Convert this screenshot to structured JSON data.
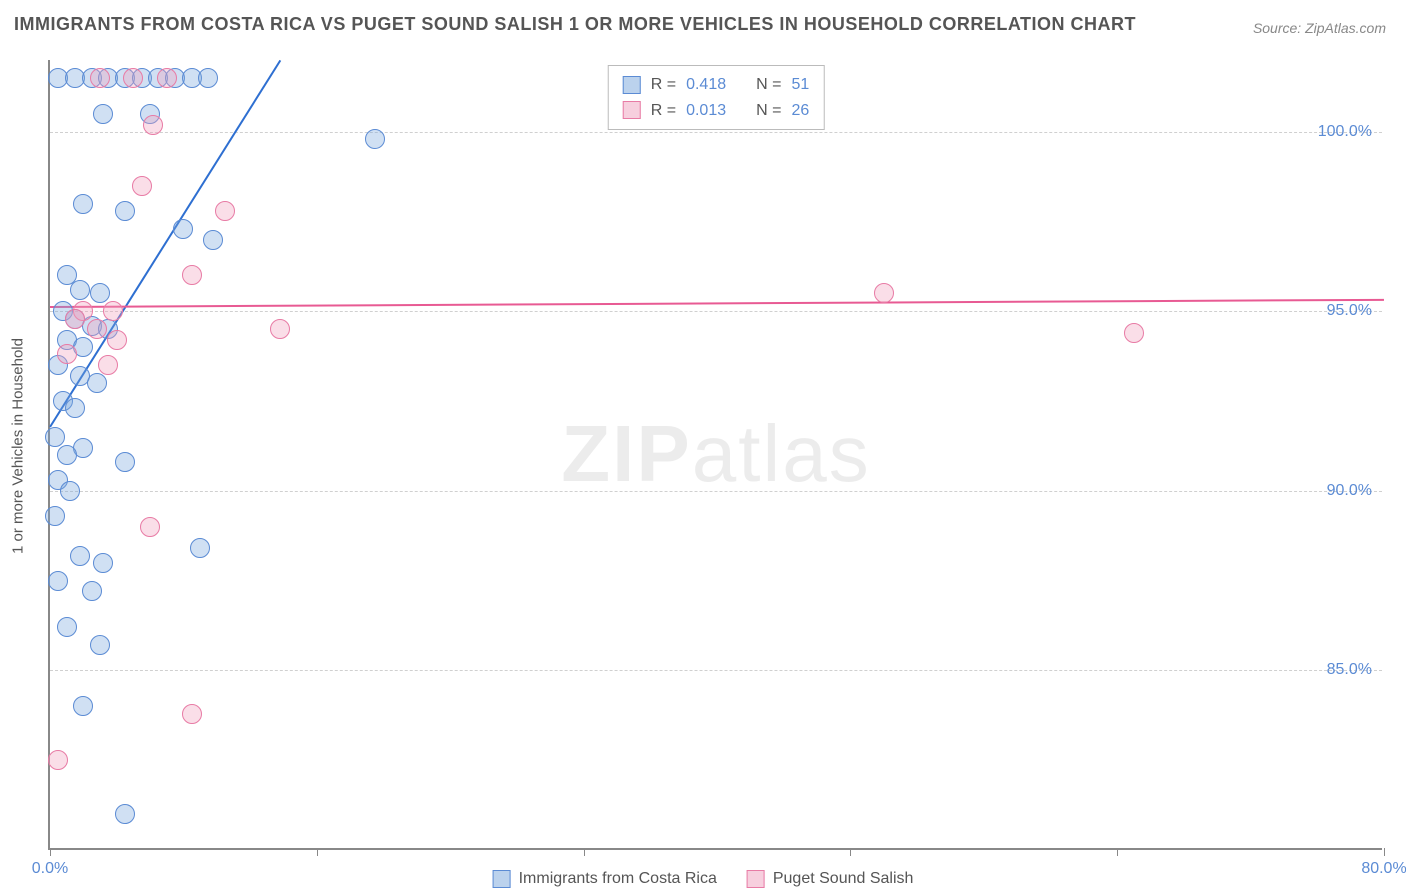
{
  "title": "IMMIGRANTS FROM COSTA RICA VS PUGET SOUND SALISH 1 OR MORE VEHICLES IN HOUSEHOLD CORRELATION CHART",
  "source": "Source: ZipAtlas.com",
  "y_axis_label": "1 or more Vehicles in Household",
  "watermark_bold": "ZIP",
  "watermark_light": "atlas",
  "chart": {
    "type": "scatter",
    "background_color": "#ffffff",
    "grid_color": "#d0d0d0",
    "axis_color": "#888888",
    "tick_label_color": "#5b8bd4",
    "xlim": [
      0,
      80
    ],
    "ylim": [
      80,
      102
    ],
    "y_ticks": [
      85,
      90,
      95,
      100
    ],
    "y_tick_labels": [
      "85.0%",
      "90.0%",
      "95.0%",
      "100.0%"
    ],
    "x_ticks": [
      0,
      16,
      32,
      48,
      64,
      80
    ],
    "x_tick_labels": [
      "0.0%",
      "",
      "",
      "",
      "",
      "80.0%"
    ],
    "marker_radius": 10,
    "marker_radius_large": 14,
    "series": [
      {
        "name": "Immigrants from Costa Rica",
        "color_fill": "rgba(120,165,220,0.35)",
        "color_stroke": "#5b8bd4",
        "class": "blue",
        "R": "0.418",
        "N": "51",
        "trend": {
          "x1": 0,
          "y1": 91.8,
          "x2": 13.8,
          "y2": 102,
          "color": "#2e6fd1"
        },
        "points": [
          [
            0.5,
            101.5
          ],
          [
            1.5,
            101.5
          ],
          [
            2.5,
            101.5
          ],
          [
            3.5,
            101.5
          ],
          [
            4.5,
            101.5
          ],
          [
            5.5,
            101.5
          ],
          [
            6.5,
            101.5
          ],
          [
            7.5,
            101.5
          ],
          [
            8.5,
            101.5
          ],
          [
            9.5,
            101.5
          ],
          [
            3.2,
            100.5
          ],
          [
            6.0,
            100.5
          ],
          [
            19.5,
            99.8
          ],
          [
            2.0,
            98.0
          ],
          [
            4.5,
            97.8
          ],
          [
            8.0,
            97.3
          ],
          [
            9.8,
            97.0
          ],
          [
            1.0,
            96.0
          ],
          [
            1.8,
            95.6
          ],
          [
            3.0,
            95.5
          ],
          [
            0.8,
            95.0
          ],
          [
            1.5,
            94.8
          ],
          [
            2.5,
            94.6
          ],
          [
            3.5,
            94.5
          ],
          [
            1.0,
            94.2
          ],
          [
            2.0,
            94.0
          ],
          [
            0.5,
            93.5
          ],
          [
            1.8,
            93.2
          ],
          [
            2.8,
            93.0
          ],
          [
            0.8,
            92.5
          ],
          [
            1.5,
            92.3
          ],
          [
            0.3,
            91.5
          ],
          [
            2.0,
            91.2
          ],
          [
            1.0,
            91.0
          ],
          [
            4.5,
            90.8
          ],
          [
            0.5,
            90.3
          ],
          [
            1.2,
            90.0
          ],
          [
            0.3,
            89.3
          ],
          [
            1.8,
            88.2
          ],
          [
            3.2,
            88.0
          ],
          [
            9.0,
            88.4
          ],
          [
            0.5,
            87.5
          ],
          [
            2.5,
            87.2
          ],
          [
            1.0,
            86.2
          ],
          [
            3.0,
            85.7
          ],
          [
            2.0,
            84.0
          ],
          [
            4.5,
            81.0
          ]
        ]
      },
      {
        "name": "Puget Sound Salish",
        "color_fill": "rgba(240,160,190,0.35)",
        "color_stroke": "#e87ba5",
        "class": "pink",
        "R": "0.013",
        "N": "26",
        "trend": {
          "x1": 0,
          "y1": 95.15,
          "x2": 80,
          "y2": 95.35,
          "color": "#e85a93"
        },
        "points": [
          [
            3.0,
            101.5
          ],
          [
            5.0,
            101.5
          ],
          [
            7.0,
            101.5
          ],
          [
            6.2,
            100.2
          ],
          [
            5.5,
            98.5
          ],
          [
            10.5,
            97.8
          ],
          [
            8.5,
            96.0
          ],
          [
            2.0,
            95.0
          ],
          [
            3.8,
            95.0
          ],
          [
            1.5,
            94.8
          ],
          [
            2.8,
            94.5
          ],
          [
            4.0,
            94.2
          ],
          [
            1.0,
            93.8
          ],
          [
            3.5,
            93.5
          ],
          [
            13.8,
            94.5
          ],
          [
            50.0,
            95.5
          ],
          [
            65.0,
            94.4
          ],
          [
            6.0,
            89.0
          ],
          [
            8.5,
            83.8
          ],
          [
            0.5,
            82.5
          ]
        ]
      }
    ]
  },
  "legend": {
    "rows": [
      {
        "class": "blue",
        "R_label": "R =",
        "R_value": "0.418",
        "N_label": "N =",
        "N_value": "51"
      },
      {
        "class": "pink",
        "R_label": "R =",
        "R_value": "0.013",
        "N_label": "N =",
        "N_value": "26"
      }
    ]
  },
  "bottom_legend": [
    {
      "class": "blue",
      "label": "Immigrants from Costa Rica"
    },
    {
      "class": "pink",
      "label": "Puget Sound Salish"
    }
  ]
}
